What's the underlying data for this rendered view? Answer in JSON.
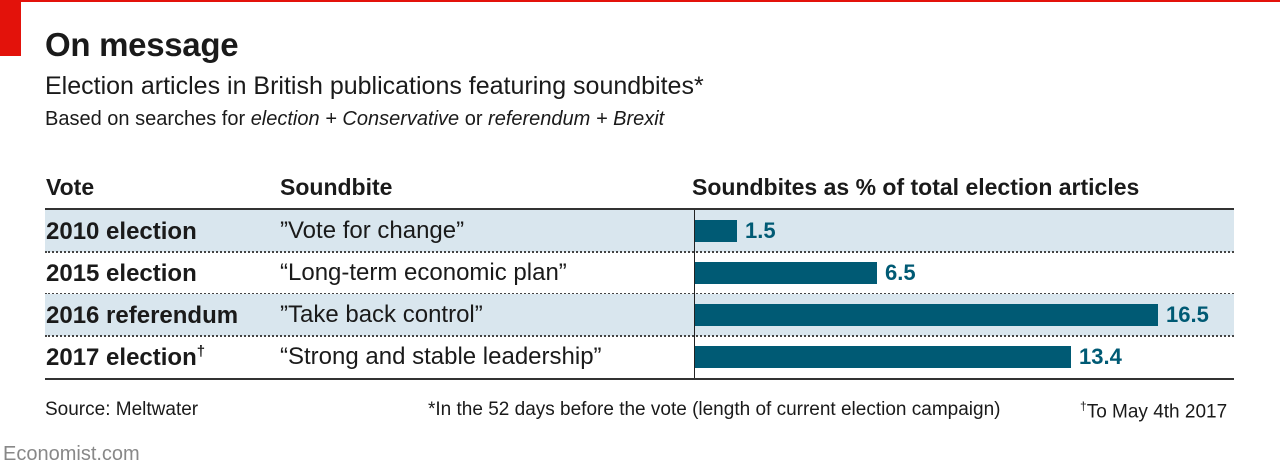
{
  "header": {
    "title": "On message",
    "subtitle": "Election articles in British publications featuring soundbites*",
    "note_prefix": "Based on searches for ",
    "note_term1": "election + Conservative",
    "note_mid": " or ",
    "note_term2": "referendum + Brexit"
  },
  "columns": {
    "vote": "Vote",
    "soundbite": "Soundbite",
    "value": "Soundbites as % of total election articles"
  },
  "rows": [
    {
      "vote": "2010 election",
      "dagger": "",
      "soundbite": "”Vote for change”",
      "label": "1.5"
    },
    {
      "vote": "2015 election",
      "dagger": "",
      "soundbite": "“Long-term economic plan”",
      "label": "6.5"
    },
    {
      "vote": "2016 referendum",
      "dagger": "",
      "soundbite": "”Take back control”",
      "label": "16.5"
    },
    {
      "vote": "2017 election",
      "dagger": "†",
      "soundbite": "“Strong and stable leadership”",
      "label": "13.4"
    }
  ],
  "chart_data": {
    "type": "bar",
    "orientation": "horizontal",
    "title": "Soundbites as % of total election articles",
    "categories": [
      "2010 election",
      "2015 election",
      "2016 referendum",
      "2017 election"
    ],
    "values": [
      1.5,
      6.5,
      16.5,
      13.4
    ],
    "xlim": [
      0,
      16.5
    ],
    "grid": false
  },
  "footer": {
    "source": "Source: Meltwater",
    "footnote1": "*In the 52 days before the vote (length of current election campaign)",
    "dagger": "†",
    "footnote2": "To May 4th 2017",
    "brand": "Economist.com"
  },
  "colors": {
    "accent": "#e3120b",
    "bar": "#005a74",
    "shade": "#d9e6ee"
  }
}
